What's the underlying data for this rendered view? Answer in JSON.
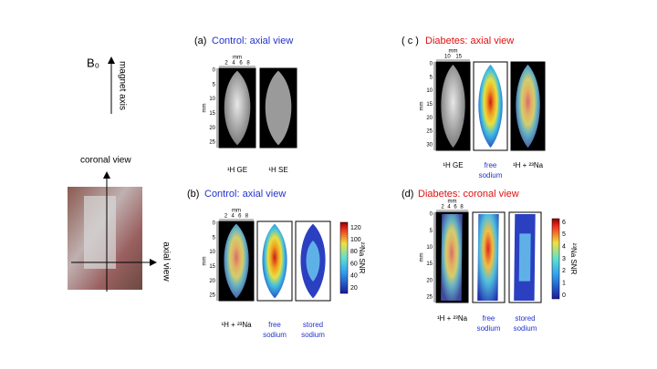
{
  "orientation": {
    "b0": "B₀",
    "magnet_axis": "magnet axis",
    "coronal": "coronal view",
    "axial": "axial view"
  },
  "panels": [
    {
      "letter": "(a)",
      "title": "Control: axial view",
      "axis_unit": "mm",
      "x_ticks": [
        2,
        4,
        6,
        8
      ],
      "y_ticks": [
        0,
        5,
        10,
        15,
        20,
        25
      ],
      "images": [
        [
          "¹H GE"
        ],
        [
          "¹H SE"
        ]
      ]
    },
    {
      "letter": "(b)",
      "title": "Control: axial view",
      "axis_unit": "mm",
      "x_ticks": [
        2,
        4,
        6,
        8
      ],
      "y_ticks": [
        0,
        5,
        10,
        15,
        20,
        25
      ],
      "images": [
        [
          "¹H + ²³Na"
        ],
        [
          "free",
          "sodium"
        ],
        [
          "stored",
          "sodium"
        ]
      ],
      "colorbar": {
        "label": "²³Na SNR",
        "ticks": [
          120,
          100,
          80,
          60,
          40,
          20
        ]
      }
    },
    {
      "letter": "( c )",
      "title": "Diabetes: axial view",
      "axis_unit": "mm",
      "x_ticks": [
        10,
        15
      ],
      "y_ticks": [
        0,
        5,
        10,
        15,
        20,
        25,
        30
      ],
      "images": [
        [
          "¹H GE"
        ],
        [
          "free",
          "sodium"
        ],
        [
          "¹H + ²³Na"
        ]
      ]
    },
    {
      "letter": "(d)",
      "title": "Diabetes: coronal view",
      "axis_unit": "mm",
      "x_ticks": [
        2,
        4,
        6,
        8
      ],
      "y_ticks": [
        0,
        5,
        10,
        15,
        20,
        25
      ],
      "images": [
        [
          "¹H + ²³Na"
        ],
        [
          "free",
          "sodium"
        ],
        [
          "stored",
          "sodium"
        ]
      ],
      "colorbar": {
        "label": "²³Na SNR",
        "ticks": [
          6,
          5,
          4,
          3,
          2,
          1,
          0
        ]
      }
    }
  ]
}
